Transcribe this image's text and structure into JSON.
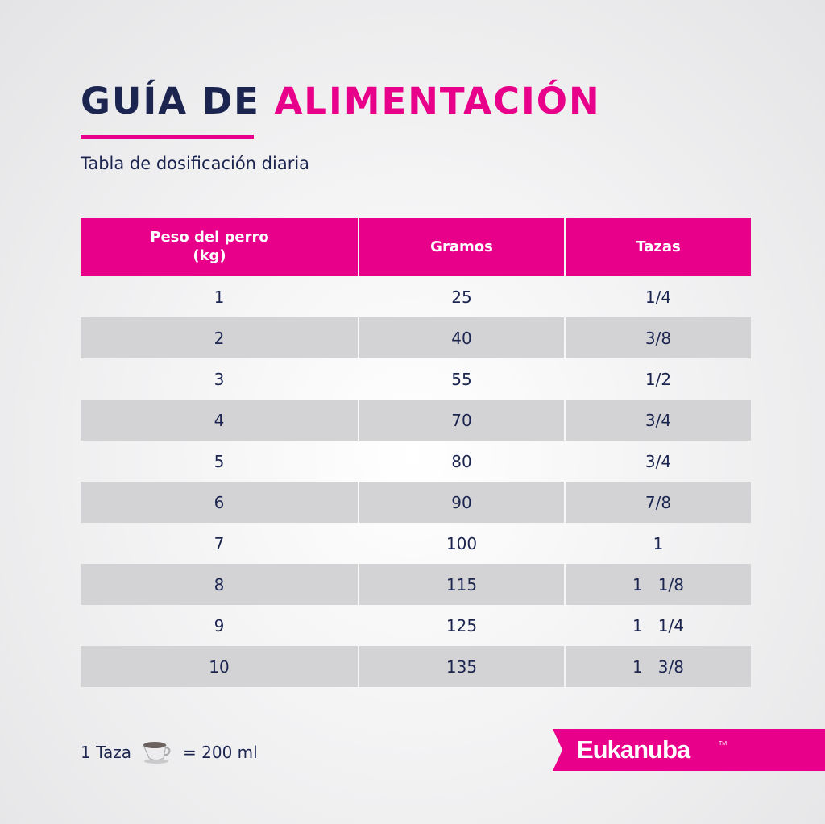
{
  "title": {
    "part1": "GUÍA DE",
    "part2": "ALIMENTACIÓN"
  },
  "subtitle": "Tabla de dosificación diaria",
  "table": {
    "headers": [
      "Peso del perro\n(kg)",
      "Gramos",
      "Tazas"
    ],
    "rows": [
      [
        "1",
        "25",
        "1/4"
      ],
      [
        "2",
        "40",
        "3/8"
      ],
      [
        "3",
        "55",
        "1/2"
      ],
      [
        "4",
        "70",
        "3/4"
      ],
      [
        "5",
        "80",
        "3/4"
      ],
      [
        "6",
        "90",
        "7/8"
      ],
      [
        "7",
        "100",
        "1"
      ],
      [
        "8",
        "115",
        "1   1/8"
      ],
      [
        "9",
        "125",
        "1   1/4"
      ],
      [
        "10",
        "135",
        "1   3/8"
      ]
    ]
  },
  "footer": {
    "cup_label": "1 Taza",
    "equals": "= 200 ml",
    "icon": "cup-icon"
  },
  "brand": {
    "name": "Eukanuba",
    "tm": "TM"
  },
  "colors": {
    "accent": "#e8008a",
    "navy": "#1b2550",
    "shade": "#d3d3d6"
  }
}
